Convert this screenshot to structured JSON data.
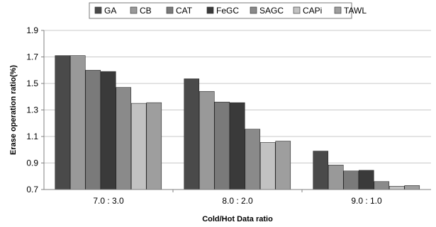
{
  "chart_data": {
    "type": "bar",
    "title": "",
    "xlabel": "Cold/Hot  Data ratio",
    "ylabel": "Erase operation ratio(%)",
    "categories": [
      "7.0 : 3.0",
      "8.0 : 2.0",
      "9.0 : 1.0"
    ],
    "ylim": [
      0.7,
      1.9
    ],
    "yticks": [
      "0.7",
      "0.9",
      "1.1",
      "1.3",
      "1.5",
      "1.7",
      "1.9"
    ],
    "grid": true,
    "legend_position": "top",
    "series": [
      {
        "name": "GA",
        "color": "#4a4a4a",
        "values": [
          1.71,
          1.535,
          0.99
        ]
      },
      {
        "name": "CB",
        "color": "#999999",
        "values": [
          1.71,
          1.44,
          0.885
        ]
      },
      {
        "name": "CAT",
        "color": "#7a7a7a",
        "values": [
          1.6,
          1.36,
          0.84
        ]
      },
      {
        "name": "FeGC",
        "color": "#3a3a3a",
        "values": [
          1.59,
          1.355,
          0.845
        ]
      },
      {
        "name": "SAGC",
        "color": "#8a8a8a",
        "values": [
          1.47,
          1.155,
          0.76
        ]
      },
      {
        "name": "CAPi",
        "color": "#c2c2c2",
        "values": [
          1.35,
          1.055,
          0.725
        ]
      },
      {
        "name": "TAWL",
        "color": "#9e9e9e",
        "values": [
          1.355,
          1.065,
          0.73
        ]
      }
    ]
  }
}
